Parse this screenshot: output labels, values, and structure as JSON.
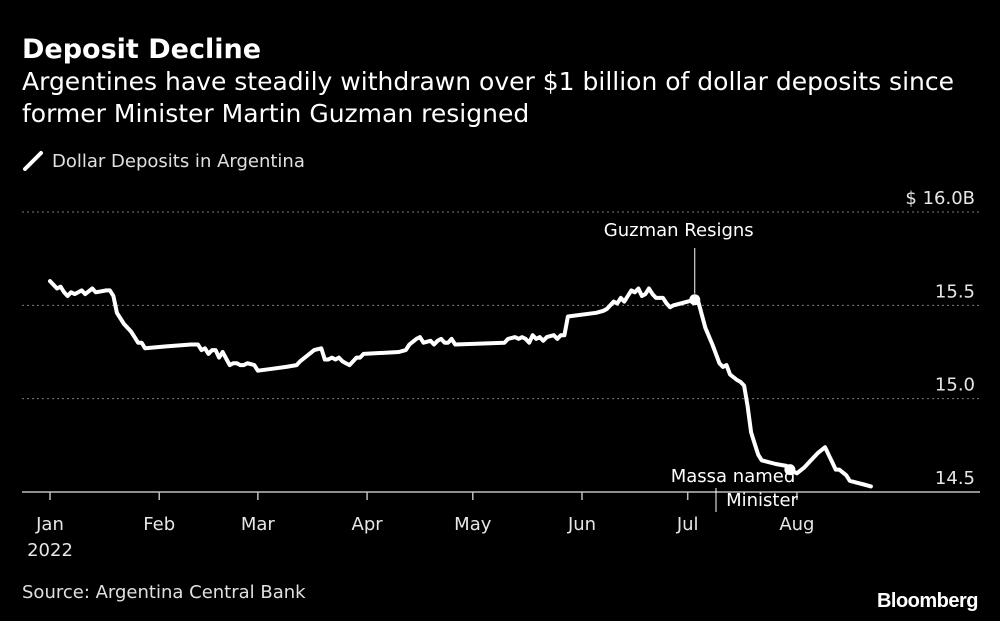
{
  "title": "Deposit Decline",
  "subtitle": "Argentines have steadily withdrawn over $1 billion of dollar deposits since former Minister Martin Guzman resigned",
  "legend": {
    "label": "Dollar Deposits in Argentina"
  },
  "source": "Source: Argentina Central Bank",
  "brand": "Bloomberg",
  "colors": {
    "background": "#000000",
    "line": "#ffffff",
    "grid": "#7a7a7a"
  },
  "chart_data": {
    "type": "line",
    "y_tick_labels": [
      "$ 16.0B",
      "15.5",
      "15.0",
      "14.5"
    ],
    "y_tick_values": [
      16.0,
      15.5,
      15.0,
      14.5
    ],
    "ylim": [
      14.5,
      16.0
    ],
    "x_tick_labels": [
      "Jan",
      "Feb",
      "Mar",
      "Apr",
      "May",
      "Jun",
      "Jul",
      "Aug"
    ],
    "x_tick_sublabel": "2022",
    "x_tick_dates": [
      "2022-01-01",
      "2022-02-01",
      "2022-03-01",
      "2022-04-01",
      "2022-05-01",
      "2022-06-01",
      "2022-07-01",
      "2022-08-01"
    ],
    "xlim": [
      "2022-01-01",
      "2022-08-26"
    ],
    "grid": true,
    "series": [
      {
        "name": "Dollar Deposits in Argentina",
        "points": [
          [
            "2022-01-01",
            15.63
          ],
          [
            "2022-01-02",
            15.61
          ],
          [
            "2022-01-03",
            15.59
          ],
          [
            "2022-01-04",
            15.6
          ],
          [
            "2022-01-05",
            15.57
          ],
          [
            "2022-01-06",
            15.55
          ],
          [
            "2022-01-07",
            15.57
          ],
          [
            "2022-01-08",
            15.56
          ],
          [
            "2022-01-10",
            15.58
          ],
          [
            "2022-01-11",
            15.56
          ],
          [
            "2022-01-13",
            15.59
          ],
          [
            "2022-01-14",
            15.57
          ],
          [
            "2022-01-17",
            15.58
          ],
          [
            "2022-01-18",
            15.58
          ],
          [
            "2022-01-19",
            15.55
          ],
          [
            "2022-01-20",
            15.46
          ],
          [
            "2022-01-22",
            15.4
          ],
          [
            "2022-01-24",
            15.36
          ],
          [
            "2022-01-25",
            15.33
          ],
          [
            "2022-01-26",
            15.3
          ],
          [
            "2022-01-27",
            15.3
          ],
          [
            "2022-01-28",
            15.27
          ],
          [
            "2022-02-03",
            15.28
          ],
          [
            "2022-02-10",
            15.29
          ],
          [
            "2022-02-12",
            15.29
          ],
          [
            "2022-02-13",
            15.26
          ],
          [
            "2022-02-14",
            15.27
          ],
          [
            "2022-02-15",
            15.24
          ],
          [
            "2022-02-16",
            15.26
          ],
          [
            "2022-02-17",
            15.26
          ],
          [
            "2022-02-18",
            15.22
          ],
          [
            "2022-02-19",
            15.25
          ],
          [
            "2022-02-21",
            15.18
          ],
          [
            "2022-02-22",
            15.19
          ],
          [
            "2022-02-23",
            15.19
          ],
          [
            "2022-02-24",
            15.18
          ],
          [
            "2022-02-25",
            15.18
          ],
          [
            "2022-02-26",
            15.19
          ],
          [
            "2022-02-28",
            15.18
          ],
          [
            "2022-03-01",
            15.15
          ],
          [
            "2022-03-05",
            15.16
          ],
          [
            "2022-03-09",
            15.17
          ],
          [
            "2022-03-12",
            15.18
          ],
          [
            "2022-03-13",
            15.2
          ],
          [
            "2022-03-15",
            15.23
          ],
          [
            "2022-03-17",
            15.26
          ],
          [
            "2022-03-19",
            15.27
          ],
          [
            "2022-03-20",
            15.21
          ],
          [
            "2022-03-21",
            15.21
          ],
          [
            "2022-03-22",
            15.22
          ],
          [
            "2022-03-23",
            15.21
          ],
          [
            "2022-03-24",
            15.22
          ],
          [
            "2022-03-25",
            15.2
          ],
          [
            "2022-03-26",
            15.19
          ],
          [
            "2022-03-27",
            15.18
          ],
          [
            "2022-03-29",
            15.22
          ],
          [
            "2022-03-30",
            15.22
          ],
          [
            "2022-03-31",
            15.24
          ],
          [
            "2022-04-10",
            15.25
          ],
          [
            "2022-04-12",
            15.26
          ],
          [
            "2022-04-13",
            15.29
          ],
          [
            "2022-04-15",
            15.32
          ],
          [
            "2022-04-16",
            15.33
          ],
          [
            "2022-04-17",
            15.3
          ],
          [
            "2022-04-19",
            15.31
          ],
          [
            "2022-04-20",
            15.29
          ],
          [
            "2022-04-21",
            15.31
          ],
          [
            "2022-04-22",
            15.32
          ],
          [
            "2022-04-23",
            15.3
          ],
          [
            "2022-04-24",
            15.3
          ],
          [
            "2022-04-25",
            15.32
          ],
          [
            "2022-04-26",
            15.29
          ],
          [
            "2022-05-10",
            15.3
          ],
          [
            "2022-05-11",
            15.32
          ],
          [
            "2022-05-13",
            15.33
          ],
          [
            "2022-05-14",
            15.32
          ],
          [
            "2022-05-15",
            15.33
          ],
          [
            "2022-05-16",
            15.32
          ],
          [
            "2022-05-17",
            15.3
          ],
          [
            "2022-05-18",
            15.34
          ],
          [
            "2022-05-19",
            15.32
          ],
          [
            "2022-05-20",
            15.33
          ],
          [
            "2022-05-21",
            15.31
          ],
          [
            "2022-05-22",
            15.33
          ],
          [
            "2022-05-24",
            15.34
          ],
          [
            "2022-05-25",
            15.32
          ],
          [
            "2022-05-26",
            15.34
          ],
          [
            "2022-05-27",
            15.34
          ],
          [
            "2022-05-28",
            15.44
          ],
          [
            "2022-06-05",
            15.46
          ],
          [
            "2022-06-07",
            15.47
          ],
          [
            "2022-06-08",
            15.48
          ],
          [
            "2022-06-10",
            15.52
          ],
          [
            "2022-06-11",
            15.51
          ],
          [
            "2022-06-12",
            15.54
          ],
          [
            "2022-06-13",
            15.52
          ],
          [
            "2022-06-14",
            15.55
          ],
          [
            "2022-06-15",
            15.58
          ],
          [
            "2022-06-16",
            15.57
          ],
          [
            "2022-06-17",
            15.59
          ],
          [
            "2022-06-18",
            15.55
          ],
          [
            "2022-06-19",
            15.56
          ],
          [
            "2022-06-20",
            15.59
          ],
          [
            "2022-06-21",
            15.56
          ],
          [
            "2022-06-22",
            15.54
          ],
          [
            "2022-06-23",
            15.54
          ],
          [
            "2022-06-24",
            15.54
          ],
          [
            "2022-06-25",
            15.51
          ],
          [
            "2022-06-26",
            15.49
          ],
          [
            "2022-06-27",
            15.5
          ],
          [
            "2022-06-29",
            15.51
          ],
          [
            "2022-07-01",
            15.52
          ],
          [
            "2022-07-03",
            15.53
          ],
          [
            "2022-07-04",
            15.52
          ],
          [
            "2022-07-05",
            15.45
          ],
          [
            "2022-07-06",
            15.38
          ],
          [
            "2022-07-08",
            15.29
          ],
          [
            "2022-07-10",
            15.19
          ],
          [
            "2022-07-11",
            15.17
          ],
          [
            "2022-07-12",
            15.18
          ],
          [
            "2022-07-13",
            15.13
          ],
          [
            "2022-07-15",
            15.1
          ],
          [
            "2022-07-16",
            15.09
          ],
          [
            "2022-07-17",
            15.07
          ],
          [
            "2022-07-18",
            14.96
          ],
          [
            "2022-07-19",
            14.82
          ],
          [
            "2022-07-20",
            14.76
          ],
          [
            "2022-07-21",
            14.7
          ],
          [
            "2022-07-22",
            14.67
          ],
          [
            "2022-07-26",
            14.65
          ],
          [
            "2022-07-29",
            14.64
          ],
          [
            "2022-07-30",
            14.62
          ],
          [
            "2022-08-01",
            14.6
          ],
          [
            "2022-08-03",
            14.63
          ],
          [
            "2022-08-05",
            14.67
          ],
          [
            "2022-08-07",
            14.71
          ],
          [
            "2022-08-09",
            14.74
          ],
          [
            "2022-08-10",
            14.7
          ],
          [
            "2022-08-11",
            14.66
          ],
          [
            "2022-08-12",
            14.62
          ],
          [
            "2022-08-13",
            14.62
          ],
          [
            "2022-08-15",
            14.59
          ],
          [
            "2022-08-16",
            14.56
          ],
          [
            "2022-08-18",
            14.55
          ],
          [
            "2022-08-20",
            14.54
          ],
          [
            "2022-08-22",
            14.53
          ]
        ]
      }
    ],
    "annotations": [
      {
        "label": "Guzman Resigns",
        "date": "2022-07-03",
        "value": 15.53
      },
      {
        "label_lines": [
          "Massa named",
          "Minister"
        ],
        "date": "2022-07-30",
        "value": 14.62
      }
    ]
  }
}
